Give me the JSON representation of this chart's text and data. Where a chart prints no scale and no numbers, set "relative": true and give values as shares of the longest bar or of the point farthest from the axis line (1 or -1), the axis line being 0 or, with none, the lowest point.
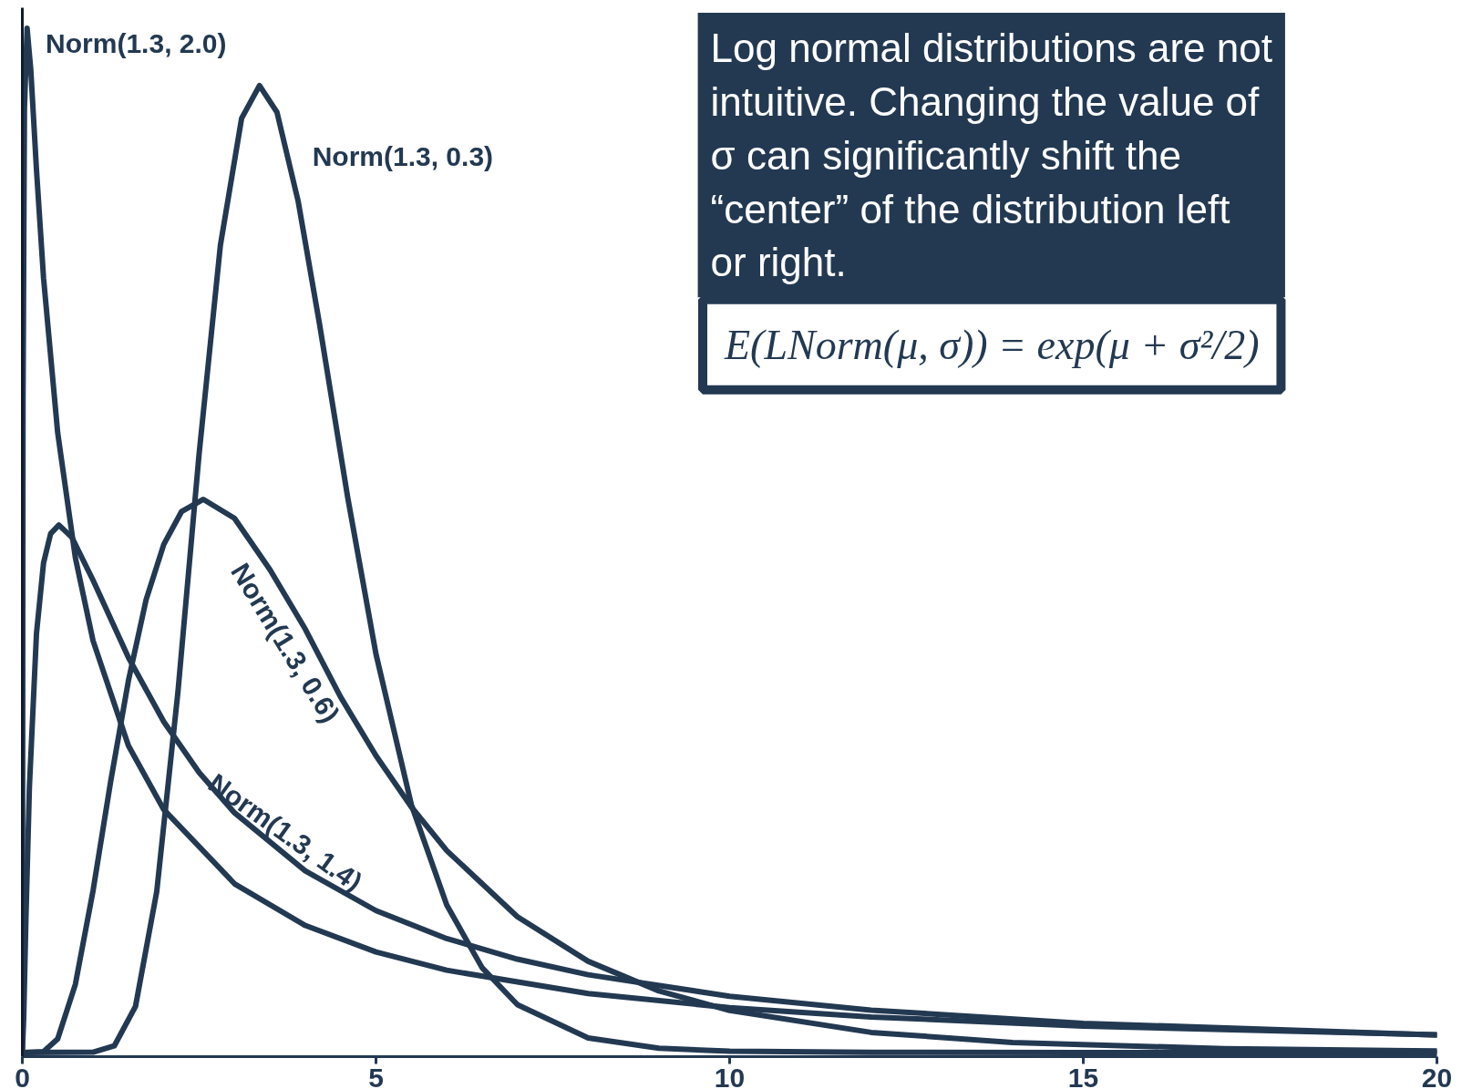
{
  "chart_data": {
    "type": "line",
    "relative": true,
    "xlim": [
      0,
      20
    ],
    "xticks": [
      0,
      5,
      10,
      15,
      20
    ],
    "tick_labels": "x",
    "annotations": [
      "Log normal distributions are not intuitive. Changing the value of σ can significantly shift the “center” of the distribution left or right.",
      "E(LNorm(μ, σ)) = exp(μ + σ²/2)"
    ],
    "series": [
      {
        "name": "Norm(1.3, 2.0)",
        "color": "#233952",
        "x": [
          0,
          0.01,
          0.03,
          0.0672,
          0.12,
          0.2,
          0.3,
          0.5,
          0.75,
          1,
          1.5,
          2,
          3,
          4,
          5,
          6,
          8,
          10,
          12,
          15,
          20
        ],
        "values": [
          0,
          0.635,
          0.922,
          1.0,
          0.959,
          0.862,
          0.756,
          0.605,
          0.483,
          0.402,
          0.2995,
          0.2371,
          0.1647,
          0.124,
          0.0981,
          0.0803,
          0.0575,
          0.0438,
          0.0347,
          0.0258,
          0.0173
        ]
      },
      {
        "name": "Norm(1.3, 0.3)",
        "color": "#233952",
        "x": [
          0,
          1.0,
          1.3,
          1.6,
          1.9,
          2.2,
          2.5,
          2.8,
          3.1,
          3.353,
          3.6,
          3.9,
          4.2,
          4.6,
          5,
          5.5,
          6,
          6.5,
          7,
          8,
          9,
          10,
          12,
          15,
          20
        ],
        "values": [
          0,
          0.0003,
          0.0064,
          0.045,
          0.157,
          0.352,
          0.585,
          0.788,
          0.912,
          0.944,
          0.918,
          0.831,
          0.712,
          0.542,
          0.389,
          0.242,
          0.144,
          0.0828,
          0.0466,
          0.0142,
          0.0042,
          0.0012,
          0.0001,
          0,
          0
        ]
      },
      {
        "name": "Norm(1.3, 0.6)",
        "color": "#233952",
        "x": [
          0,
          0.3,
          0.5,
          0.75,
          1,
          1.25,
          1.5,
          1.75,
          2,
          2.25,
          2.56,
          3,
          3.5,
          4,
          4.5,
          5,
          5.5,
          6,
          7,
          8,
          9,
          10,
          12,
          14,
          17,
          20
        ],
        "values": [
          0,
          0.0009,
          0.0133,
          0.0666,
          0.158,
          0.265,
          0.363,
          0.442,
          0.496,
          0.528,
          0.54,
          0.5215,
          0.4715,
          0.4134,
          0.347,
          0.2898,
          0.2397,
          0.1971,
          0.1325,
          0.089,
          0.0601,
          0.041,
          0.0196,
          0.0098,
          0.0037,
          0.0015
        ]
      },
      {
        "name": "Norm(1.3, 1.4)",
        "color": "#233952",
        "x": [
          0,
          0.02,
          0.05,
          0.1,
          0.2,
          0.3,
          0.4,
          0.517,
          0.7,
          1,
          1.5,
          2,
          2.5,
          3,
          4,
          5,
          6,
          7,
          8,
          10,
          12,
          15,
          20
        ],
        "values": [
          0,
          0.0347,
          0.128,
          0.259,
          0.409,
          0.478,
          0.5065,
          0.515,
          0.503,
          0.461,
          0.3856,
          0.3229,
          0.2733,
          0.234,
          0.1773,
          0.1385,
          0.1112,
          0.0911,
          0.0759,
          0.0549,
          0.0413,
          0.0285,
          0.017
        ]
      }
    ]
  }
}
